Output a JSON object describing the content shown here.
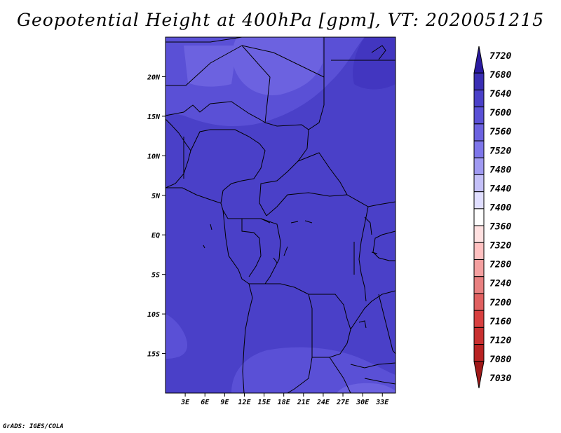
{
  "title": "Geopotential Height at 400hPa [gpm], VT: 2020051215",
  "footer": "GrADS: IGES/COLA",
  "map": {
    "lon_range": [
      0,
      35
    ],
    "lat_range": [
      -20,
      25
    ],
    "lat_ticks": [
      {
        "value": 20,
        "label": "20N"
      },
      {
        "value": 15,
        "label": "15N"
      },
      {
        "value": 10,
        "label": "10N"
      },
      {
        "value": 5,
        "label": "5N"
      },
      {
        "value": 0,
        "label": "EQ"
      },
      {
        "value": -5,
        "label": "5S"
      },
      {
        "value": -10,
        "label": "10S"
      },
      {
        "value": -15,
        "label": "15S"
      }
    ],
    "lon_ticks": [
      {
        "value": 3,
        "label": "3E"
      },
      {
        "value": 6,
        "label": "6E"
      },
      {
        "value": 9,
        "label": "9E"
      },
      {
        "value": 12,
        "label": "12E"
      },
      {
        "value": 15,
        "label": "15E"
      },
      {
        "value": 18,
        "label": "18E"
      },
      {
        "value": 21,
        "label": "21E"
      },
      {
        "value": 24,
        "label": "24E"
      },
      {
        "value": 27,
        "label": "27E"
      },
      {
        "value": 30,
        "label": "30E"
      },
      {
        "value": 33,
        "label": "33E"
      }
    ]
  },
  "colorbar": {
    "labels": [
      "7720",
      "7680",
      "7640",
      "7600",
      "7560",
      "7520",
      "7480",
      "7440",
      "7400",
      "7360",
      "7320",
      "7280",
      "7240",
      "7200",
      "7160",
      "7120",
      "7080",
      "7030"
    ],
    "colors": [
      "#2a1aa0",
      "#3a2eb4",
      "#4a40c8",
      "#5a50d6",
      "#6c62e0",
      "#7e76ea",
      "#a09af2",
      "#c4c0f8",
      "#e0deff",
      "#ffffff",
      "#ffe0e0",
      "#ffc0c0",
      "#f4a0a0",
      "#e88080",
      "#e06060",
      "#d84040",
      "#c83030",
      "#b82222",
      "#a01818"
    ]
  }
}
